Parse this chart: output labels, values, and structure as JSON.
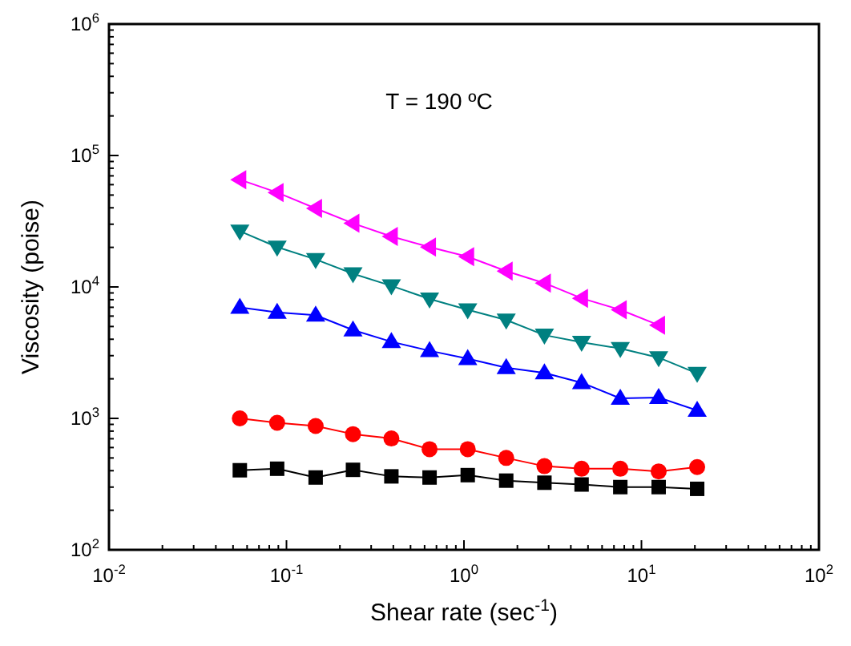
{
  "chart_data": {
    "type": "line",
    "xlabel": "Shear rate (sec$^{-1}$)",
    "ylabel": "Viscosity (poise)",
    "annotations": [
      "T = 190 ºC"
    ],
    "log": "xy",
    "grid": false,
    "line_style": "solid",
    "xlim": [
      0.01,
      100
    ],
    "ylim": [
      100,
      1000000
    ],
    "xticks": [
      {
        "value": 0.01,
        "label": "10$^{-2}$"
      },
      {
        "value": 0.1,
        "label": "10$^{-1}$"
      },
      {
        "value": 1,
        "label": "10$^{0}$"
      },
      {
        "value": 10,
        "label": "10$^{1}$"
      },
      {
        "value": 100,
        "label": "10$^{2}$"
      }
    ],
    "yticks": [
      {
        "value": 100,
        "label": "10$^{2}$"
      },
      {
        "value": 1000,
        "label": "10$^{3}$"
      },
      {
        "value": 10000,
        "label": "10$^{4}$"
      },
      {
        "value": 100000,
        "label": "10$^{5}$"
      },
      {
        "value": 1000000,
        "label": "10$^{6}$"
      }
    ],
    "x": [
      0.0546,
      0.0886,
      0.146,
      0.237,
      0.39,
      0.64,
      1.05,
      1.73,
      2.84,
      4.6,
      7.6,
      12.5,
      20.6
    ],
    "series": [
      {
        "color": "#000000",
        "marker": "square",
        "values": [
          403,
          414,
          355,
          406,
          362,
          355,
          370,
          336,
          324,
          314,
          300,
          300,
          291
        ]
      },
      {
        "color": "#ff0000",
        "marker": "circle",
        "values": [
          1000,
          926,
          875,
          759,
          703,
          583,
          583,
          500,
          433,
          414,
          414,
          395,
          426
        ]
      },
      {
        "color": "#0000ff",
        "marker": "triangle",
        "values": [
          7000,
          6400,
          6100,
          4700,
          3830,
          3270,
          2850,
          2430,
          2220,
          1870,
          1420,
          1440,
          1150
        ]
      },
      {
        "color": "#008080",
        "marker": "triangle-down",
        "values": [
          26600,
          20100,
          16200,
          12600,
          10200,
          8100,
          6700,
          5600,
          4300,
          3800,
          3400,
          2900,
          2200
        ]
      },
      {
        "color": "#ff00ff",
        "marker": "triangle-left",
        "values": [
          65500,
          52300,
          39600,
          30500,
          24200,
          20100,
          17000,
          13200,
          10700,
          8200,
          6700,
          5120,
          null
        ]
      }
    ]
  }
}
